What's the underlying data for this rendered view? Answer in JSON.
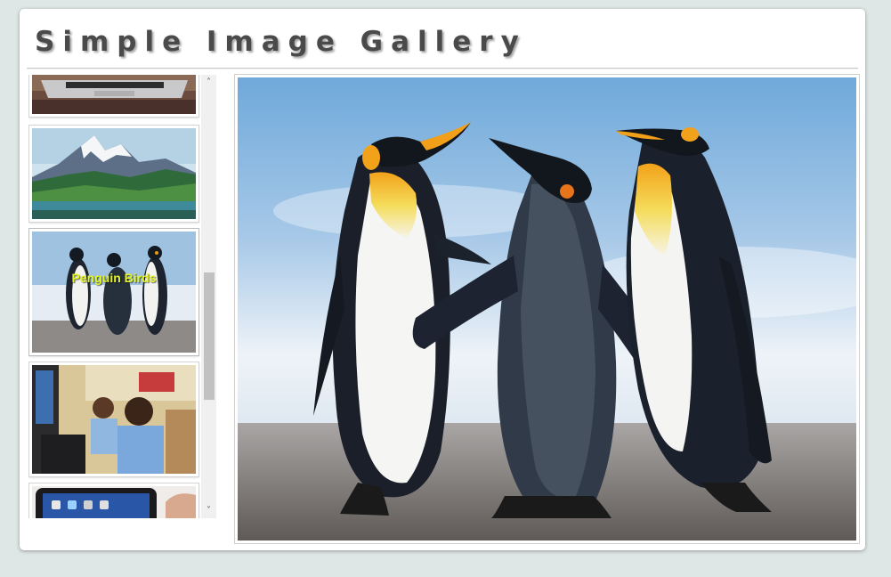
{
  "header": {
    "title": "Simple Image Gallery"
  },
  "gallery": {
    "thumbnails": [
      {
        "name": "laptop-thumbnail",
        "caption": ""
      },
      {
        "name": "mountain-thumbnail",
        "caption": ""
      },
      {
        "name": "penguin-thumbnail",
        "caption": "Penguin Birds"
      },
      {
        "name": "children-computer-thumbnail",
        "caption": ""
      },
      {
        "name": "tablet-thumbnail",
        "caption": ""
      }
    ],
    "selected_caption": "Penguin Birds"
  },
  "scrollbar": {
    "up_arrow": "˄",
    "down_arrow": "˅"
  },
  "colors": {
    "caption": "#e6f51c",
    "title": "#4a4a4a",
    "background": "#dfe7e6"
  }
}
